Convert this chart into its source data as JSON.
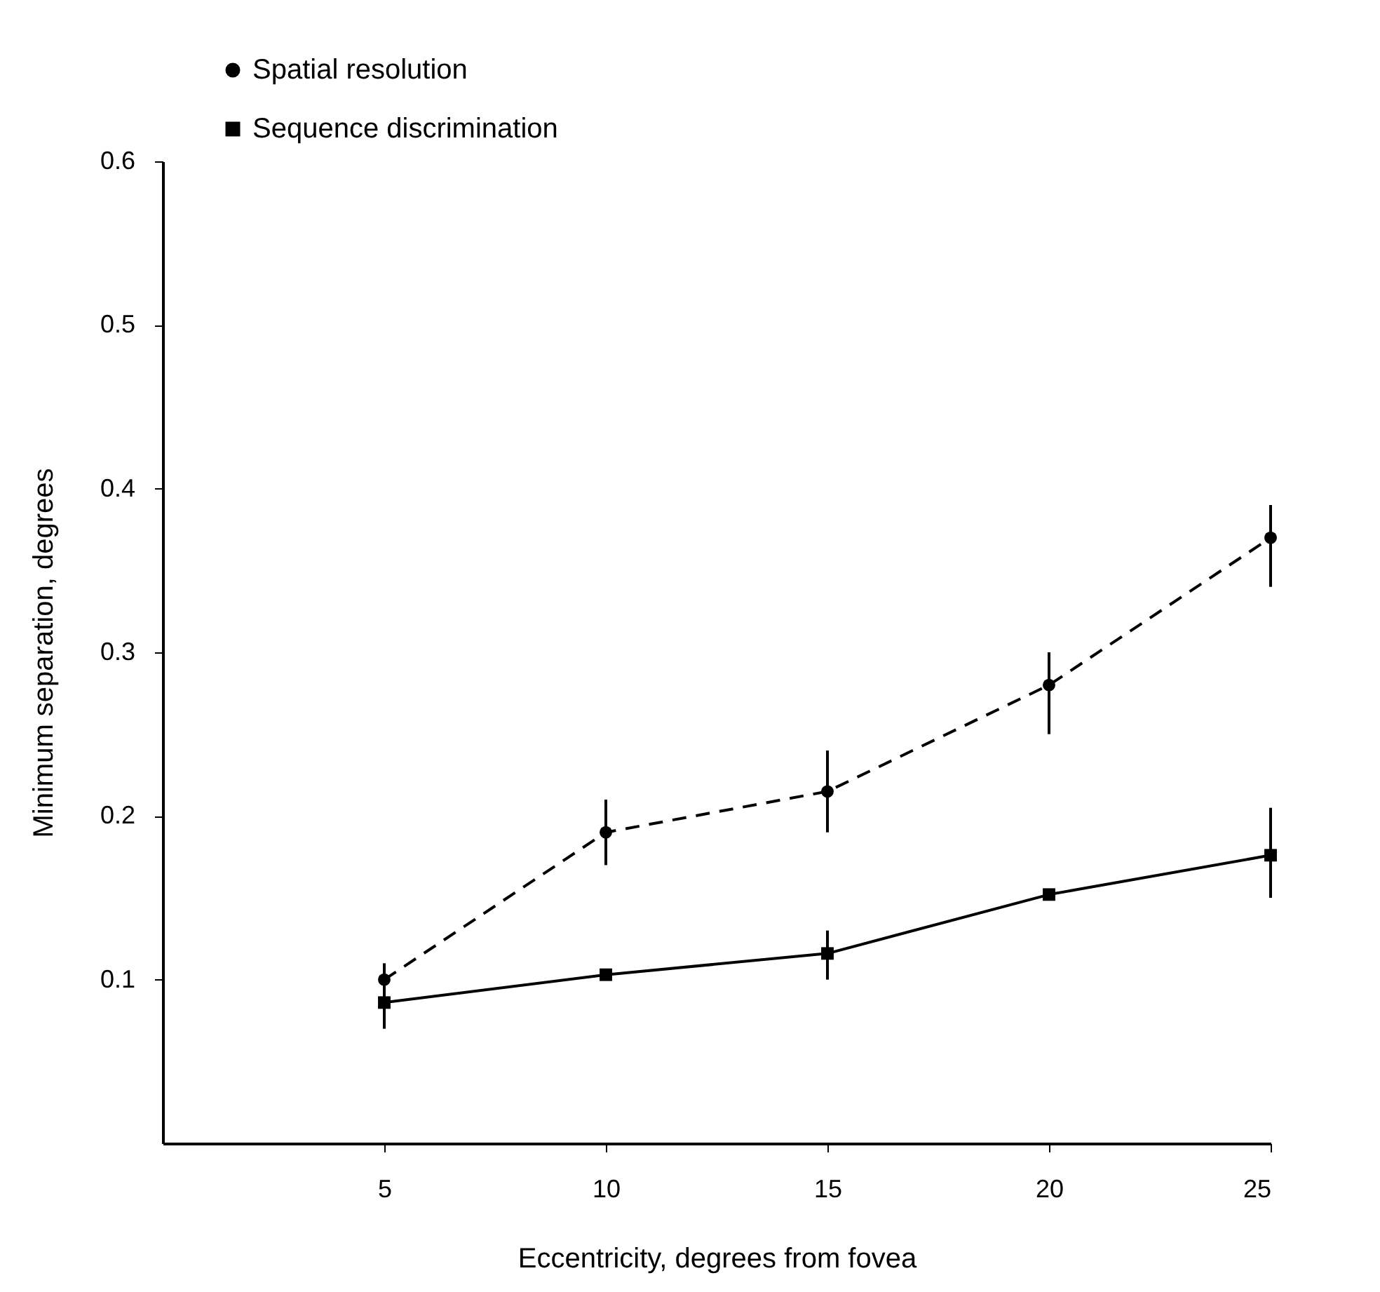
{
  "chart_data": {
    "type": "line",
    "xlabel": "Eccentricity, degrees from fovea",
    "ylabel": "Minimum separation, degrees",
    "x": [
      5,
      10,
      15,
      20,
      25
    ],
    "xlim": [
      0,
      25
    ],
    "xticks": [
      5,
      10,
      15,
      20,
      25
    ],
    "ylim": [
      0,
      0.6
    ],
    "yticks": [
      0.1,
      0.2,
      0.3,
      0.4,
      0.5,
      0.6
    ],
    "grid": false,
    "legend": "top left",
    "series": [
      {
        "name": "Spatial resolution",
        "color": "#000000",
        "marker": "circle",
        "line_style": "dashed",
        "values": [
          0.1,
          0.19,
          0.215,
          0.28,
          0.37
        ],
        "errors": [
          [
            0.08,
            0.11
          ],
          [
            0.17,
            0.21
          ],
          [
            0.19,
            0.24
          ],
          [
            0.25,
            0.3
          ],
          [
            0.34,
            0.39
          ]
        ]
      },
      {
        "name": "Sequence discrimination",
        "color": "#000000",
        "marker": "square",
        "line_style": "solid",
        "values": [
          0.086,
          0.103,
          0.116,
          0.152,
          0.176
        ],
        "errors": [
          [
            0.07,
            0.105
          ],
          null,
          [
            0.1,
            0.13
          ],
          null,
          [
            0.15,
            0.205
          ]
        ]
      }
    ]
  }
}
